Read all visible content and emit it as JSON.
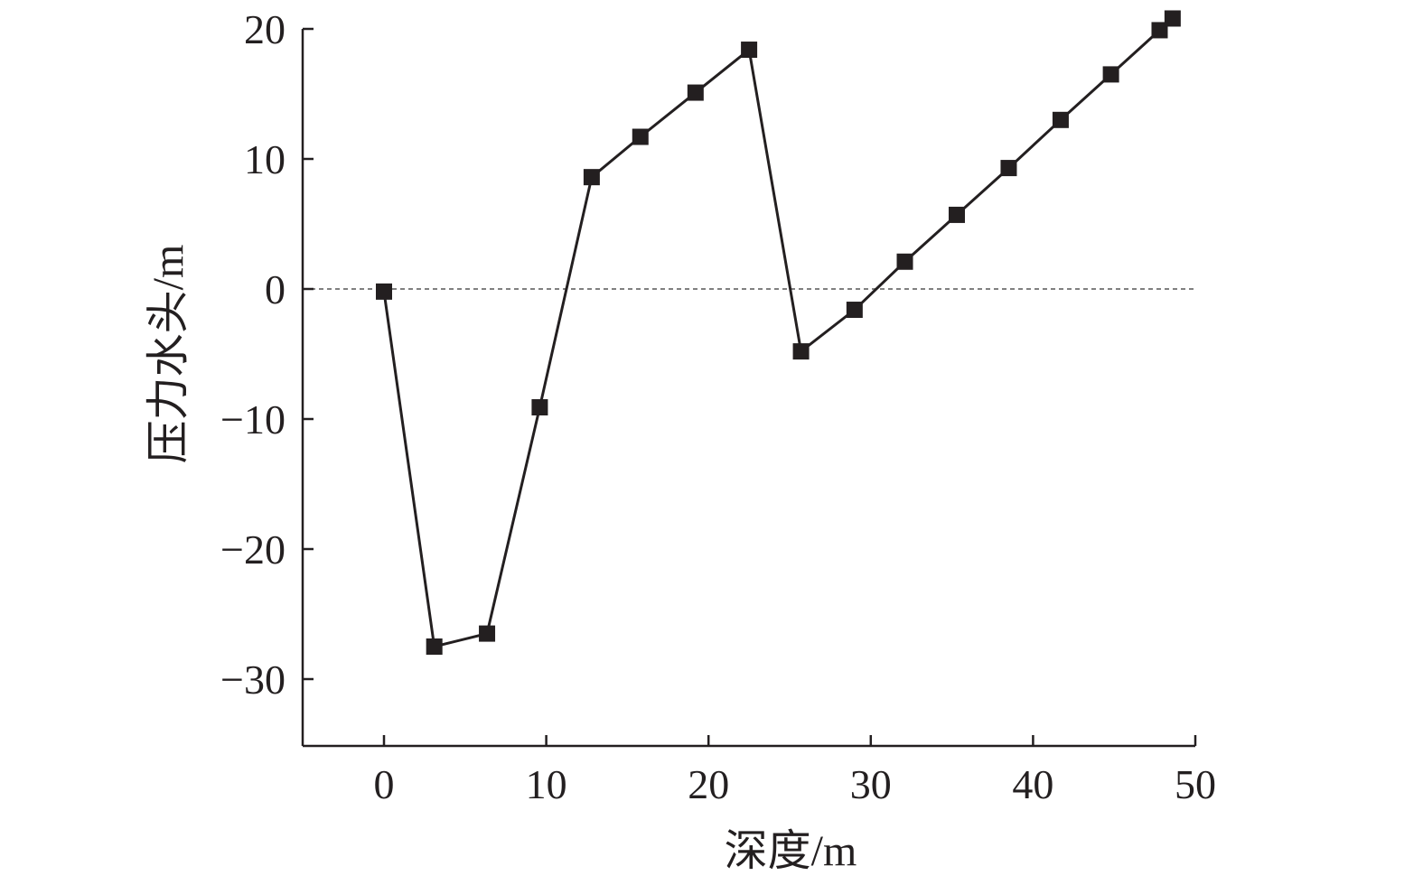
{
  "chart_data": {
    "type": "line",
    "title": "",
    "xlabel": "深度/m",
    "ylabel": "压力水头/m",
    "xlim": [
      -5,
      50
    ],
    "ylim": [
      -35,
      20
    ],
    "xticks": [
      0,
      10,
      20,
      30,
      40,
      50
    ],
    "yticks": [
      20,
      10,
      0,
      -10,
      -20,
      -30
    ],
    "ytick_labels": [
      "20",
      "10",
      "0",
      "−10",
      "−20",
      "−30"
    ],
    "grid": false,
    "reference_line": {
      "y": 0,
      "style": "dashed",
      "color": "#808080"
    },
    "marker": "square",
    "color": "#231f20",
    "series": [
      {
        "x": [
          0,
          3.1,
          6.35,
          9.6,
          12.8,
          15.8,
          19.2,
          22.5,
          25.7,
          29.0,
          32.1,
          35.3,
          38.5,
          41.7,
          44.8,
          47.8,
          48.6
        ],
        "y": [
          -0.2,
          -27.5,
          -26.5,
          -9.1,
          8.6,
          11.7,
          15.1,
          18.4,
          -4.8,
          -1.6,
          2.1,
          5.7,
          9.3,
          13.0,
          16.5,
          19.9,
          20.8
        ]
      }
    ]
  }
}
